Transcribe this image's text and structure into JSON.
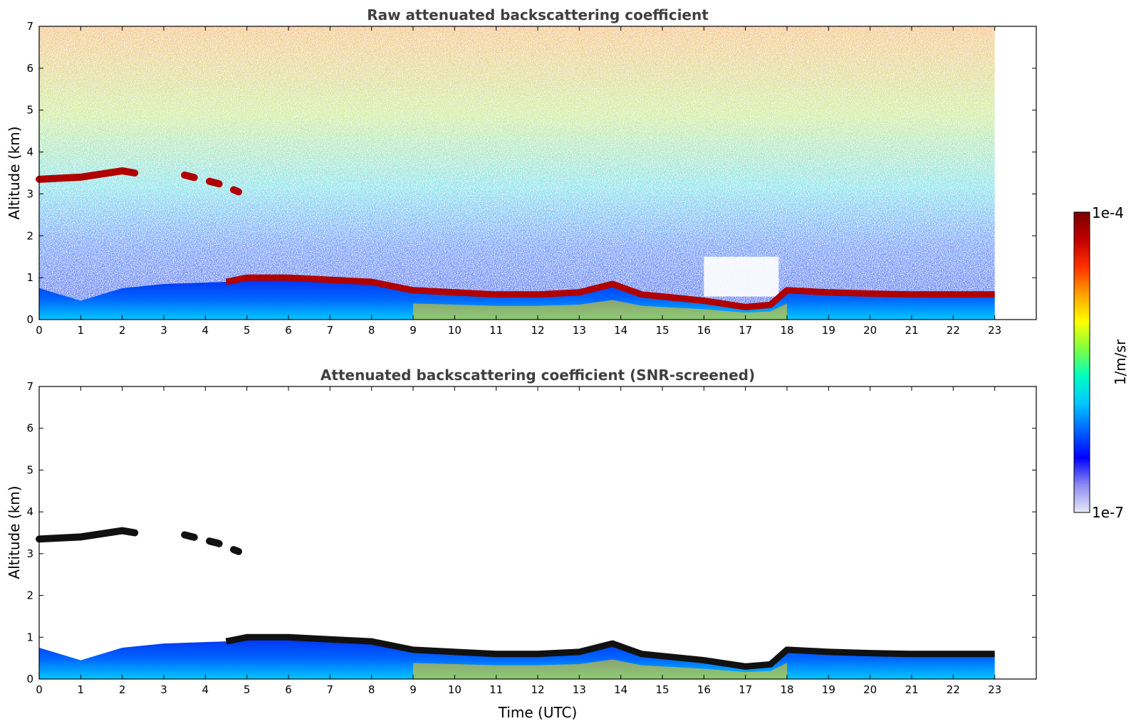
{
  "chart_data": [
    {
      "type": "heatmap",
      "title": "Raw attenuated backscattering coefficient",
      "xlabel": "",
      "ylabel": "Altitude (km)",
      "xlim": [
        0,
        24
      ],
      "ylim": [
        0,
        7
      ],
      "x_ticks": [
        "0",
        "1",
        "2",
        "3",
        "4",
        "5",
        "6",
        "7",
        "8",
        "9",
        "10",
        "11",
        "12",
        "13",
        "14",
        "15",
        "16",
        "17",
        "18",
        "19",
        "20",
        "21",
        "22",
        "23"
      ],
      "y_ticks": [
        "0",
        "1",
        "2",
        "3",
        "4",
        "5",
        "6",
        "7"
      ],
      "data_end_time": 23,
      "noise_background": "present",
      "layers": [
        {
          "feature": "elevated layer",
          "points": [
            [
              0,
              3.35
            ],
            [
              1,
              3.4
            ],
            [
              2,
              3.55
            ],
            [
              2.3,
              3.5
            ]
          ]
        },
        {
          "feature": "elevated layer fragments",
          "points": [
            [
              3.5,
              3.45
            ],
            [
              4.3,
              3.25
            ],
            [
              4.8,
              3.05
            ]
          ]
        },
        {
          "feature": "boundary layer top",
          "points": [
            [
              0,
              0.75
            ],
            [
              1,
              0.45
            ],
            [
              2,
              0.75
            ],
            [
              3,
              0.85
            ],
            [
              4.5,
              0.9
            ],
            [
              5,
              1.0
            ],
            [
              6,
              1.0
            ],
            [
              7,
              0.95
            ],
            [
              8,
              0.9
            ],
            [
              9,
              0.7
            ],
            [
              10,
              0.65
            ],
            [
              11,
              0.6
            ],
            [
              12,
              0.6
            ],
            [
              13,
              0.65
            ],
            [
              13.8,
              0.85
            ],
            [
              14.5,
              0.6
            ],
            [
              15,
              0.55
            ],
            [
              16,
              0.45
            ],
            [
              17,
              0.3
            ],
            [
              17.6,
              0.35
            ],
            [
              18,
              0.7
            ],
            [
              19,
              0.65
            ],
            [
              20,
              0.62
            ],
            [
              21,
              0.6
            ],
            [
              22,
              0.6
            ],
            [
              23,
              0.6
            ]
          ]
        }
      ]
    },
    {
      "type": "heatmap",
      "title": "Attenuated backscattering coefficient (SNR-screened)",
      "xlabel": "Time (UTC)",
      "ylabel": "Altitude (km)",
      "xlim": [
        0,
        24
      ],
      "ylim": [
        0,
        7
      ],
      "x_ticks": [
        "0",
        "1",
        "2",
        "3",
        "4",
        "5",
        "6",
        "7",
        "8",
        "9",
        "10",
        "11",
        "12",
        "13",
        "14",
        "15",
        "16",
        "17",
        "18",
        "19",
        "20",
        "21",
        "22",
        "23"
      ],
      "y_ticks": [
        "0",
        "1",
        "2",
        "3",
        "4",
        "5",
        "6",
        "7"
      ],
      "data_end_time": 23,
      "noise_background": "screened"
    }
  ],
  "colorbar": {
    "label": "1/m/sr",
    "max_label": "1e-4",
    "min_label": "1e-7",
    "colors": [
      "#e8e8f8",
      "#8c8cf0",
      "#0000ff",
      "#0064ff",
      "#00c8ff",
      "#00ffc0",
      "#80ff40",
      "#ffff00",
      "#ffa000",
      "#ff3000",
      "#c00000",
      "#7a0000"
    ]
  }
}
